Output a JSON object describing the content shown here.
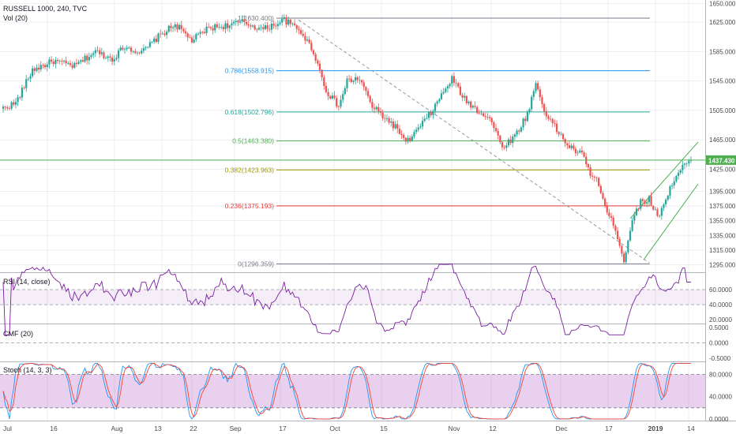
{
  "header": {
    "symbol_line": "RUSSELL 1000, 240, TVC",
    "vol_line": "Vol (20)"
  },
  "colors": {
    "up": "#26a69a",
    "down": "#ef5350",
    "grid": "#e0e3eb",
    "price_line": "#4caf50",
    "rsi": "#7b1fa2",
    "stoch_k": "#2196f3",
    "stoch_d": "#f44336",
    "fib_1": "#787b86",
    "fib_786": "#2196f3",
    "fib_618": "#26a69a",
    "fib_5": "#4caf50",
    "fib_382": "#9c9c00",
    "fib_236": "#e53935",
    "fib_0": "#787b86"
  },
  "price_axis": {
    "ticks": [
      "1650.000",
      "1625.000",
      "1585.000",
      "1545.000",
      "1505.000",
      "1465.000",
      "1425.000",
      "1395.000",
      "1375.000",
      "1355.000",
      "1335.000",
      "1315.000",
      "1295.000"
    ],
    "tick_values": [
      1650,
      1625,
      1585,
      1545,
      1505,
      1465,
      1425,
      1395,
      1375,
      1355,
      1335,
      1315,
      1295
    ],
    "last_price_label": "1437.430",
    "last_price": 1437.43
  },
  "time_axis": {
    "labels": [
      "Jul",
      "16",
      "Aug",
      "13",
      "22",
      "Sep",
      "17",
      "Oct",
      "15",
      "Nov",
      "12",
      "Dec",
      "17",
      "2019",
      "14"
    ]
  },
  "fib_levels": [
    {
      "label": "1(1630.400)",
      "value": 1630.4,
      "key": "fib_1"
    },
    {
      "label": "0.786(1558.915)",
      "value": 1558.915,
      "key": "fib_786"
    },
    {
      "label": "0.618(1502.796)",
      "value": 1502.796,
      "key": "fib_618"
    },
    {
      "label": "0.5(1463.380)",
      "value": 1463.38,
      "key": "fib_5"
    },
    {
      "label": "0.382(1423.963)",
      "value": 1423.963,
      "key": "fib_382"
    },
    {
      "label": "0.236(1375.193)",
      "value": 1375.193,
      "key": "fib_236"
    },
    {
      "label": "0(1296.359)",
      "value": 1296.359,
      "key": "fib_0"
    }
  ],
  "rsi": {
    "title": "RSI (14, close)",
    "ticks": [
      "60.0000",
      "40.0000",
      "20.0000"
    ],
    "tick_values": [
      60,
      40,
      20
    ]
  },
  "cmf": {
    "title": "CMF (20)",
    "ticks": [
      "0.5000",
      "0.0000",
      "-0.5000"
    ],
    "tick_values": [
      0.5,
      0,
      -0.5
    ]
  },
  "stoch": {
    "title": "Stoch (14, 3, 3)",
    "ticks": [
      "80.0000",
      "40.0000",
      "0.0000"
    ],
    "tick_values": [
      80,
      40,
      0
    ]
  },
  "chart_data": {
    "type": "candlestick",
    "title": "RUSSELL 1000, 240, TVC",
    "ylim": [
      1285,
      1655
    ],
    "anchors": [
      {
        "i": 0,
        "v": 1508
      },
      {
        "i": 6,
        "v": 1515
      },
      {
        "i": 14,
        "v": 1560
      },
      {
        "i": 24,
        "v": 1572
      },
      {
        "i": 34,
        "v": 1565
      },
      {
        "i": 44,
        "v": 1585
      },
      {
        "i": 52,
        "v": 1575
      },
      {
        "i": 58,
        "v": 1592
      },
      {
        "i": 66,
        "v": 1583
      },
      {
        "i": 74,
        "v": 1605
      },
      {
        "i": 82,
        "v": 1622
      },
      {
        "i": 90,
        "v": 1600
      },
      {
        "i": 98,
        "v": 1617
      },
      {
        "i": 106,
        "v": 1620
      },
      {
        "i": 114,
        "v": 1625
      },
      {
        "i": 124,
        "v": 1615
      },
      {
        "i": 134,
        "v": 1628
      },
      {
        "i": 142,
        "v": 1612
      },
      {
        "i": 148,
        "v": 1585
      },
      {
        "i": 154,
        "v": 1532
      },
      {
        "i": 160,
        "v": 1510
      },
      {
        "i": 164,
        "v": 1545
      },
      {
        "i": 170,
        "v": 1548
      },
      {
        "i": 176,
        "v": 1510
      },
      {
        "i": 182,
        "v": 1495
      },
      {
        "i": 188,
        "v": 1480
      },
      {
        "i": 192,
        "v": 1460
      },
      {
        "i": 198,
        "v": 1480
      },
      {
        "i": 204,
        "v": 1502
      },
      {
        "i": 210,
        "v": 1530
      },
      {
        "i": 214,
        "v": 1548
      },
      {
        "i": 220,
        "v": 1520
      },
      {
        "i": 226,
        "v": 1505
      },
      {
        "i": 232,
        "v": 1495
      },
      {
        "i": 238,
        "v": 1455
      },
      {
        "i": 244,
        "v": 1470
      },
      {
        "i": 250,
        "v": 1500
      },
      {
        "i": 254,
        "v": 1542
      },
      {
        "i": 258,
        "v": 1505
      },
      {
        "i": 264,
        "v": 1478
      },
      {
        "i": 270,
        "v": 1455
      },
      {
        "i": 276,
        "v": 1445
      },
      {
        "i": 280,
        "v": 1420
      },
      {
        "i": 284,
        "v": 1405
      },
      {
        "i": 288,
        "v": 1365
      },
      {
        "i": 292,
        "v": 1345
      },
      {
        "i": 296,
        "v": 1300
      },
      {
        "i": 300,
        "v": 1358
      },
      {
        "i": 304,
        "v": 1380
      },
      {
        "i": 308,
        "v": 1385
      },
      {
        "i": 312,
        "v": 1360
      },
      {
        "i": 316,
        "v": 1385
      },
      {
        "i": 320,
        "v": 1412
      },
      {
        "i": 324,
        "v": 1428
      },
      {
        "i": 328,
        "v": 1437
      }
    ],
    "n_bars": 329,
    "ranges": {
      "rsi": [
        15,
        82
      ],
      "cmf": [
        -0.6,
        0.6
      ],
      "stoch": [
        -3,
        102
      ]
    }
  }
}
